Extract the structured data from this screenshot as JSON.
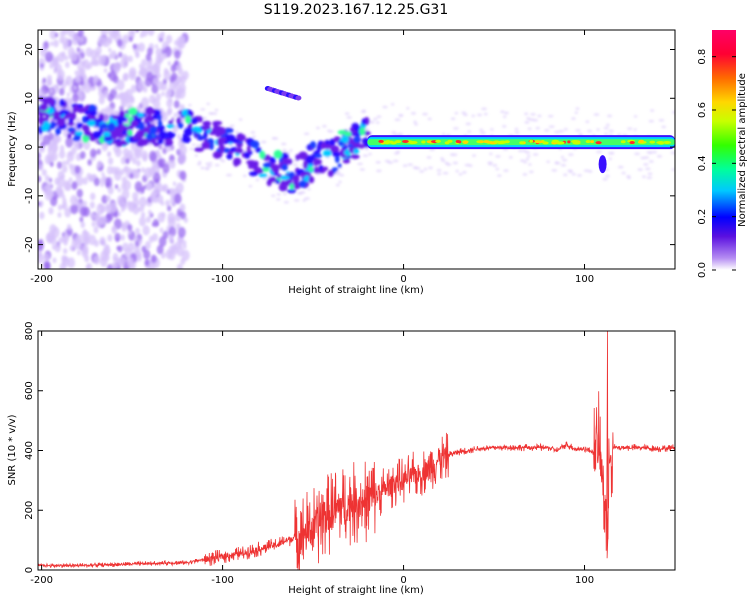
{
  "title": "S119.2023.167.12.25.G31",
  "chart_data": [
    {
      "type": "heatmap",
      "xlabel": "Height of straight line (km)",
      "ylabel": "Frequency (Hz)",
      "xlim": [
        -202,
        150
      ],
      "ylim": [
        -25,
        24
      ],
      "xticks": [
        -200,
        -100,
        0,
        100
      ],
      "yticks": [
        -20,
        -10,
        0,
        10,
        20
      ],
      "colorbar": {
        "label": "Normalized spectral amplitude",
        "range": [
          0,
          0.9
        ],
        "ticks": [
          "0.0",
          "0.2",
          "0.4",
          "0.6",
          "0.8"
        ]
      },
      "ridge": {
        "x": [
          -202,
          -180,
          -160,
          -140,
          -120,
          -100,
          -80,
          -60,
          -50,
          -40,
          -30,
          -20,
          0,
          20,
          50,
          80,
          100,
          110,
          150
        ],
        "freq": [
          7,
          5,
          4,
          4,
          4,
          1,
          -3,
          -6,
          -3,
          -2,
          1,
          2,
          2,
          1,
          1,
          1,
          1,
          0,
          1
        ]
      }
    },
    {
      "type": "line",
      "xlabel": "Height of straight line (km)",
      "ylabel": "SNR (10 * v/v)",
      "xlim": [
        -202,
        150
      ],
      "ylim": [
        0,
        800
      ],
      "xticks": [
        -200,
        -100,
        0,
        100
      ],
      "yticks": [
        0,
        200,
        400,
        600,
        800
      ],
      "series": [
        {
          "color": "#ee3333",
          "x": [
            -202,
            -180,
            -150,
            -120,
            -110,
            -100,
            -90,
            -80,
            -70,
            -60,
            -50,
            -45,
            -40,
            -35,
            -30,
            -25,
            -20,
            -15,
            -10,
            -5,
            0,
            5,
            10,
            15,
            20,
            25,
            30,
            40,
            50,
            60,
            70,
            80,
            85,
            90,
            95,
            100,
            105,
            108,
            110,
            112,
            113,
            114,
            116,
            120,
            130,
            140,
            150
          ],
          "y": [
            15,
            15,
            20,
            25,
            35,
            45,
            55,
            70,
            85,
            110,
            140,
            170,
            190,
            210,
            220,
            225,
            230,
            250,
            270,
            290,
            300,
            315,
            325,
            345,
            370,
            385,
            395,
            405,
            410,
            410,
            410,
            410,
            400,
            420,
            405,
            405,
            395,
            420,
            300,
            190,
            140,
            405,
            410,
            410,
            410,
            405,
            410
          ]
        }
      ]
    }
  ]
}
